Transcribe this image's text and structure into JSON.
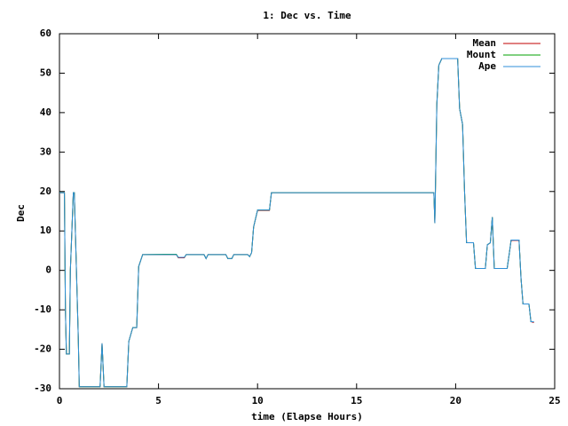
{
  "chart_data": {
    "type": "line",
    "title": "1: Dec vs. Time",
    "x_label": "time (Elapse Hours)",
    "y_label": "Dec",
    "xlim": [
      0,
      25
    ],
    "xticks": [
      0,
      5,
      10,
      15,
      20,
      25
    ],
    "ylim": [
      -30,
      60
    ],
    "yticks": [
      -30,
      -20,
      -10,
      0,
      10,
      20,
      30,
      40,
      50,
      60
    ],
    "grid": false,
    "legend": "top-right",
    "x": [
      0,
      0.25,
      0.3,
      0.35,
      0.5,
      0.55,
      0.7,
      0.75,
      0.95,
      1.0,
      1.05,
      2.05,
      2.15,
      2.25,
      3.4,
      3.5,
      3.7,
      3.9,
      4.0,
      4.1,
      4.2,
      5.3,
      5.9,
      6.0,
      6.3,
      6.4,
      7.3,
      7.4,
      7.5,
      8.4,
      8.5,
      8.7,
      8.8,
      9.5,
      9.6,
      9.7,
      9.8,
      10.0,
      10.6,
      10.7,
      18.9,
      18.95,
      19.05,
      19.15,
      19.3,
      20.1,
      20.2,
      20.35,
      20.45,
      20.55,
      20.65,
      20.9,
      21.0,
      21.5,
      21.6,
      21.75,
      21.85,
      21.95,
      22.05,
      22.6,
      22.7,
      22.8,
      23.2,
      23.3,
      23.4,
      23.7,
      23.8,
      23.95
    ],
    "series": [
      {
        "name": "Mean",
        "color": "#c00000",
        "values": [
          19.7,
          19.7,
          -10,
          -21.2,
          -21.2,
          0,
          19.7,
          19.7,
          -17,
          -29.5,
          -29.5,
          -29.5,
          -18.5,
          -29.5,
          -29.5,
          -18,
          -14.5,
          -14.5,
          1,
          2.5,
          4,
          4,
          4,
          3.2,
          3.2,
          4,
          4,
          3,
          4,
          4,
          3,
          3,
          4,
          4,
          3.5,
          4.5,
          11,
          15.2,
          15.2,
          19.7,
          19.7,
          12,
          42,
          52,
          53.7,
          53.7,
          41,
          37,
          20,
          7,
          7,
          7,
          0.5,
          0.5,
          6.5,
          7,
          13.5,
          0.5,
          0.5,
          0.5,
          4,
          7.6,
          7.6,
          -2,
          -8.5,
          -8.5,
          -13,
          -13.2
        ]
      },
      {
        "name": "Mount",
        "color": "#00a000",
        "values": [
          19.7,
          19.7,
          -10,
          -21.2,
          -21.2,
          0,
          19.7,
          19.7,
          -17,
          -29.5,
          -29.5,
          -29.5,
          -18.5,
          -29.5,
          -29.5,
          -18,
          -14.5,
          -14.5,
          1,
          2.5,
          4,
          4.1,
          4.1,
          3.3,
          3.3,
          4,
          4,
          3,
          4,
          4,
          3,
          3,
          4,
          4,
          3.5,
          4.5,
          11,
          15.3,
          15.3,
          19.7,
          19.7,
          12,
          42,
          52,
          53.7,
          53.7,
          41,
          37,
          20,
          7,
          7,
          7,
          0.5,
          0.5,
          6.5,
          7,
          13.5,
          0.5,
          0.5,
          0.5,
          4,
          7.7,
          7.7,
          -2,
          -8.5,
          -8.5,
          -13,
          -13
        ]
      },
      {
        "name": "Ape",
        "color": "#2f8fd8",
        "values": [
          19.7,
          19.7,
          -10,
          -21.2,
          -21.2,
          0,
          19.7,
          19.7,
          -17,
          -29.5,
          -29.5,
          -29.5,
          -18.5,
          -29.5,
          -29.5,
          -18,
          -14.5,
          -14.5,
          1,
          2.5,
          4,
          4,
          4,
          3.3,
          3.3,
          4,
          4,
          3,
          4,
          4,
          3,
          3,
          4,
          4,
          3.5,
          4.5,
          11,
          15.3,
          15.3,
          19.7,
          19.7,
          12,
          42,
          52,
          53.7,
          53.7,
          41,
          37,
          20,
          7,
          7,
          7,
          0.5,
          0.5,
          6.5,
          7,
          13.5,
          0.5,
          0.5,
          0.5,
          4,
          7.7,
          7.7,
          -2,
          -8.5,
          -8.5,
          -13,
          -13
        ]
      }
    ]
  }
}
